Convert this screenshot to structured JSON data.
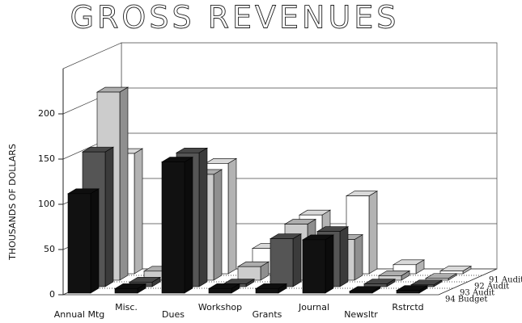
{
  "chart_data": {
    "type": "bar3d",
    "title": "GROSS REVENUES",
    "y_label": "THOUSANDS OF DOLLARS",
    "categories": [
      "Annual Mtg",
      "Misc.",
      "Dues",
      "Workshop",
      "Grants",
      "Journal",
      "Newsltr",
      "Rstrctd"
    ],
    "series": [
      {
        "name": "94 Budget",
        "color": "#111111",
        "values": [
          110,
          5,
          145,
          5,
          5,
          59,
          2,
          3
        ]
      },
      {
        "name": "93 Audit",
        "color": "#555555",
        "values": [
          149,
          5,
          148,
          3,
          53,
          61,
          3,
          2
        ]
      },
      {
        "name": "92 Audit",
        "color": "#cccccc",
        "values": [
          208,
          10,
          117,
          15,
          62,
          45,
          5,
          2
        ]
      },
      {
        "name": "91 Audit",
        "color": "#ffffff",
        "values": [
          133,
          5,
          122,
          28,
          65,
          86,
          10,
          3
        ]
      }
    ],
    "ylim": [
      0,
      250
    ],
    "yticks": [
      0,
      50,
      100,
      150,
      200
    ],
    "grid": true
  }
}
